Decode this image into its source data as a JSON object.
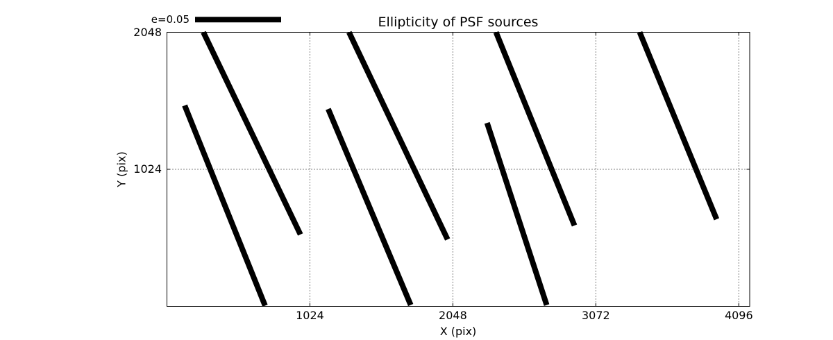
{
  "figure": {
    "background_color": "#ffffff",
    "foreground_color": "#000000"
  },
  "chart_data": {
    "type": "line",
    "subtype": "ellipticity-whisker-map",
    "title": "Ellipticity of PSF sources",
    "xlabel": "X (pix)",
    "ylabel": "Y (pix)",
    "xlim": [
      0,
      4174
    ],
    "ylim": [
      0,
      2048
    ],
    "xticks": [
      1024,
      2048,
      3072,
      4096
    ],
    "yticks": [
      1024,
      2048
    ],
    "grid": "dotted",
    "legend": {
      "label": "e=0.05",
      "position": "top-left-above-axes"
    },
    "series": [
      {
        "name": "PSF ellipticity whiskers",
        "style": "solid black, linewidth 8px, butt caps",
        "segments": [
          {
            "x1": 127,
            "y1": 1501,
            "x2": 703,
            "y2": 5
          },
          {
            "x1": 261,
            "y1": 2048,
            "x2": 956,
            "y2": 537
          },
          {
            "x1": 1155,
            "y1": 1475,
            "x2": 1746,
            "y2": 10
          },
          {
            "x1": 1304,
            "y1": 2048,
            "x2": 2010,
            "y2": 500
          },
          {
            "x1": 2293,
            "y1": 1371,
            "x2": 2720,
            "y2": 10
          },
          {
            "x1": 2357,
            "y1": 2048,
            "x2": 2919,
            "y2": 604
          },
          {
            "x1": 3386,
            "y1": 2048,
            "x2": 3937,
            "y2": 651
          }
        ]
      }
    ]
  }
}
